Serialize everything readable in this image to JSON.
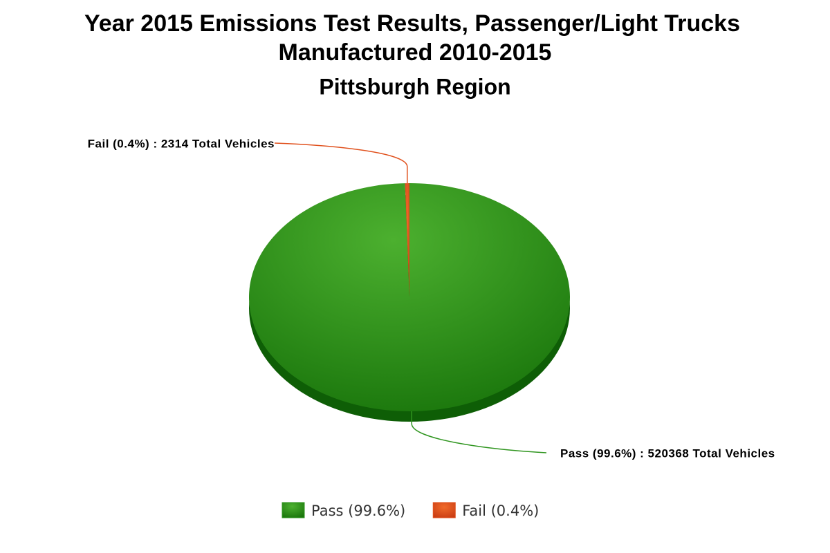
{
  "chart_data": {
    "type": "pie",
    "title": [
      "Year 2015 Emissions Test Results, Passenger/Light Trucks",
      "Manufactured 2010-2015"
    ],
    "subtitle": "Pittsburgh Region",
    "categories": [
      "Pass (99.6%)",
      "Fail (0.4%)"
    ],
    "values": [
      520368,
      2314
    ],
    "value_labels": [
      "Pass (99.6%) : 520368 Total Vehicles",
      "Fail (0.4%) : 2314 Total Vehicles"
    ],
    "colors": [
      "#2f951f",
      "#e0501c"
    ],
    "legend": "bottom"
  }
}
